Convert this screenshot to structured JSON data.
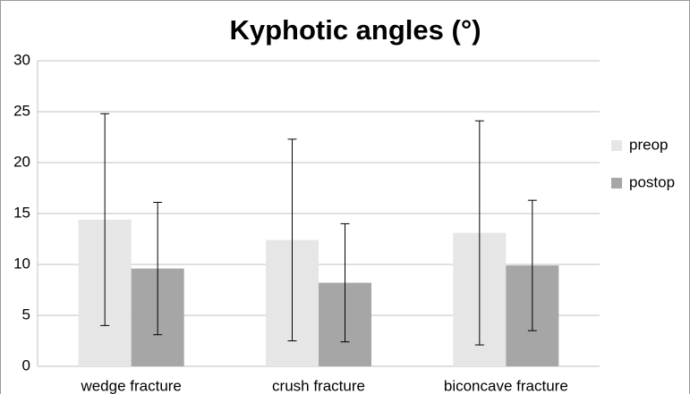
{
  "chart_data": {
    "type": "bar",
    "title": "Kyphotic angles (°)",
    "categories": [
      "wedge fracture",
      "crush fracture",
      "biconcave fracture"
    ],
    "series": [
      {
        "name": "preop",
        "color": "#e6e6e6",
        "values": [
          14.4,
          12.4,
          13.1
        ],
        "errors": [
          10.4,
          9.9,
          11.0
        ]
      },
      {
        "name": "postop",
        "color": "#a6a6a6",
        "values": [
          9.6,
          8.2,
          9.9
        ],
        "errors": [
          6.5,
          5.8,
          6.4
        ]
      }
    ],
    "ylim": [
      0,
      30
    ],
    "yticks": [
      0,
      5,
      10,
      15,
      20,
      25,
      30
    ],
    "grid": true,
    "legend": "right"
  }
}
